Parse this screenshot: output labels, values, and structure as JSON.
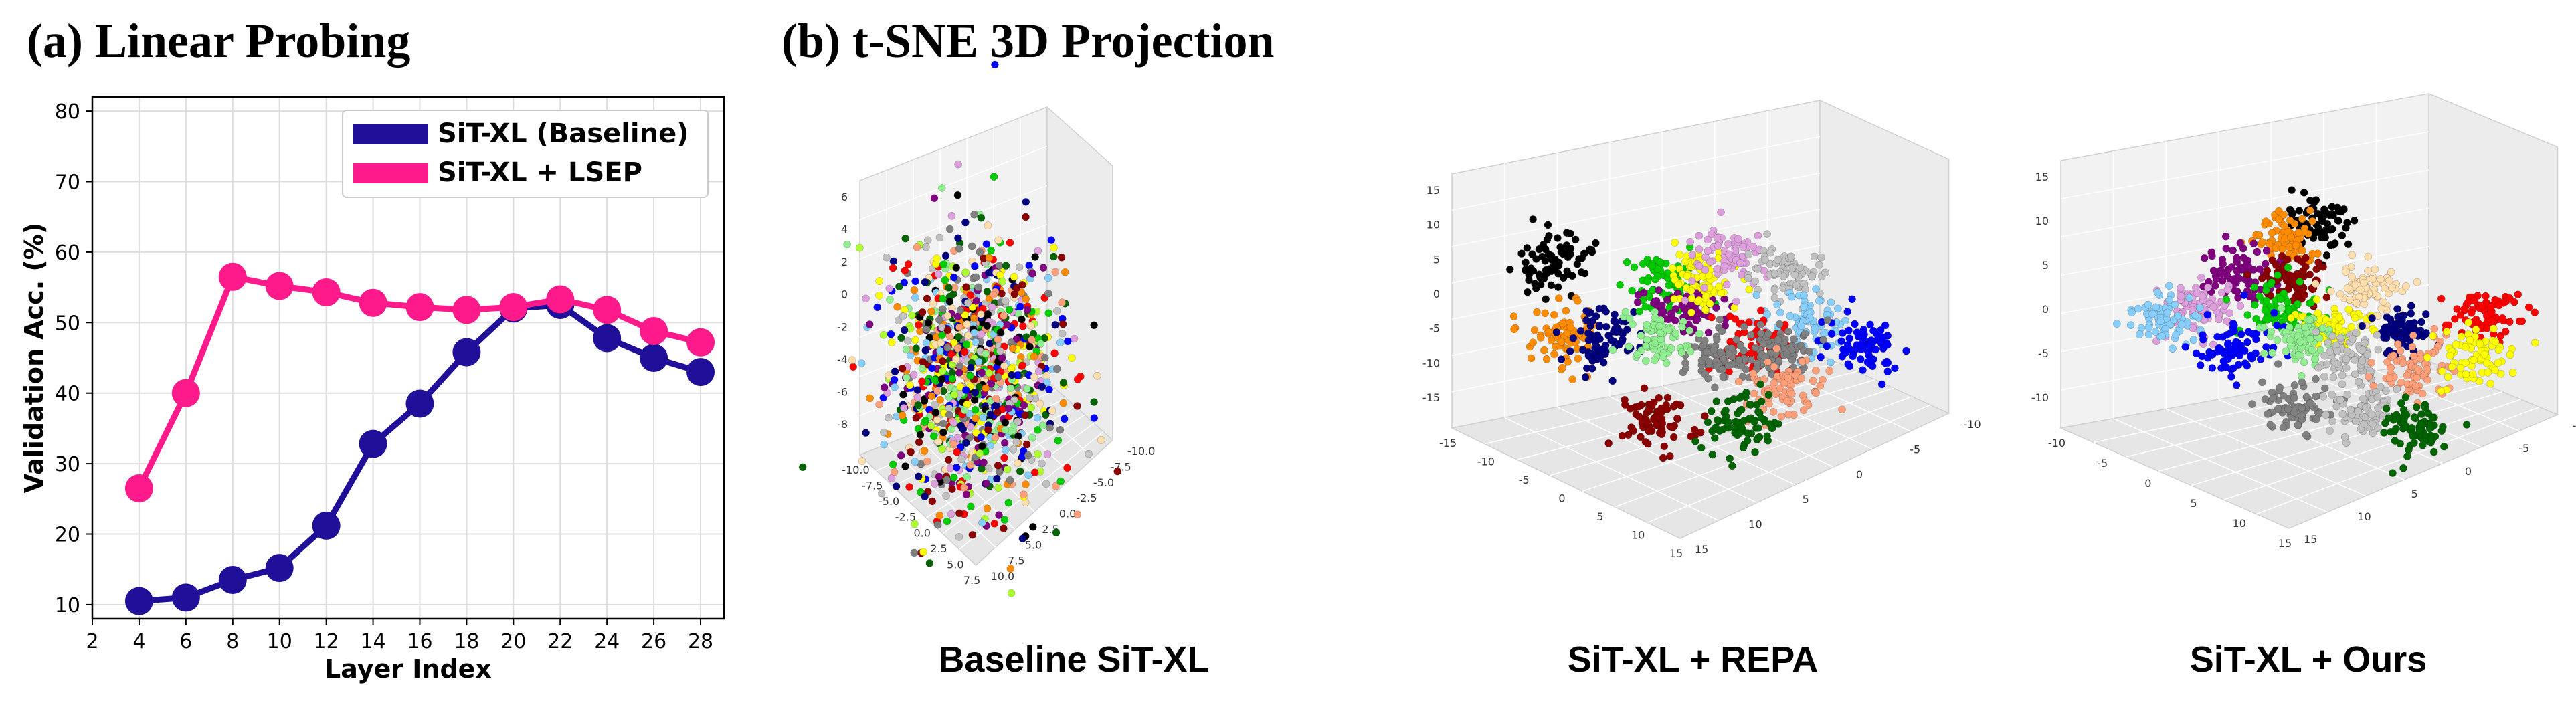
{
  "panel_a": {
    "title": "(a) Linear Probing"
  },
  "panel_b": {
    "title": "(b) t-SNE 3D Projection",
    "captions": [
      "Baseline SiT-XL",
      "SiT-XL + REPA",
      "SiT-XL + Ours"
    ]
  },
  "colors": {
    "baseline": "#1f0f99",
    "lsep": "#ff1a8c",
    "cluster_palette": [
      "#000000",
      "#ff0000",
      "#0000ff",
      "#00cc00",
      "#ff8c00",
      "#800080",
      "#ffff00",
      "#87cefa",
      "#8b0000",
      "#006400",
      "#808080",
      "#dda0dd",
      "#90ee90",
      "#ffa07a",
      "#000080",
      "#c0c0c0",
      "#ffdead",
      "#adff2f"
    ]
  },
  "chart_data": [
    {
      "type": "line",
      "xlabel": "Layer Index",
      "ylabel": "Validation Acc. (%)",
      "xlim": [
        2,
        29
      ],
      "ylim": [
        8,
        82
      ],
      "xticks": [
        2,
        4,
        6,
        8,
        10,
        12,
        14,
        16,
        18,
        20,
        22,
        24,
        26,
        28
      ],
      "yticks": [
        10,
        20,
        30,
        40,
        50,
        60,
        70,
        80
      ],
      "grid": true,
      "legend": "top-right",
      "series": [
        {
          "name": "SiT-XL (Baseline)",
          "x": [
            4,
            6,
            8,
            10,
            12,
            14,
            16,
            18,
            20,
            22,
            24,
            26,
            28
          ],
          "y": [
            10.5,
            11,
            13.5,
            15.2,
            21.2,
            32.8,
            38.5,
            45.8,
            52,
            52.5,
            47.8,
            45,
            43
          ]
        },
        {
          "name": "SiT-XL + LSEP",
          "x": [
            4,
            6,
            8,
            10,
            12,
            14,
            16,
            18,
            20,
            22,
            24,
            26,
            28
          ],
          "y": [
            26.5,
            40,
            56.5,
            55.2,
            54.3,
            52.8,
            52.2,
            51.8,
            52.2,
            53.3,
            51.8,
            48.8,
            47.2
          ]
        }
      ]
    },
    {
      "type": "scatter",
      "caption": "Baseline SiT-XL",
      "axes": {
        "x_ticks": [
          "-10.0",
          "-7.5",
          "-5.0",
          "-2.5",
          "0.0",
          "2.5",
          "5.0",
          "7.5"
        ],
        "y_ticks": [
          "-10.0",
          "-7.5",
          "-5.0",
          "-2.5",
          "0.0",
          "2.5",
          "5.0",
          "7.5",
          "10.0"
        ],
        "z_ticks": [
          "-8",
          "-6",
          "-4",
          "-2",
          "0",
          "2",
          "4",
          "6"
        ]
      },
      "clusters": [
        {
          "cx": -2,
          "cy": 0,
          "cz": 0,
          "spread": 7,
          "color_index": -1
        }
      ]
    },
    {
      "type": "scatter",
      "caption": "SiT-XL + REPA",
      "axes": {
        "x_ticks": [
          "-15",
          "-10",
          "-5",
          "0",
          "5",
          "10",
          "15"
        ],
        "y_ticks": [
          "-10",
          "-5",
          "0",
          "5",
          "10",
          "15"
        ],
        "z_ticks": [
          "-15",
          "-10",
          "-5",
          "0",
          "5",
          "10",
          "15"
        ]
      },
      "clusters": [
        {
          "cx": -11,
          "cy": 6,
          "cz": 11,
          "spread": 1.6,
          "color_index": 0
        },
        {
          "cx": -12,
          "cy": 0,
          "cz": 1,
          "spread": 1.8,
          "color_index": 4
        },
        {
          "cx": -8,
          "cy": 2,
          "cz": 2,
          "spread": 1.6,
          "color_index": 14
        },
        {
          "cx": -2,
          "cy": 4,
          "cz": 9,
          "spread": 1.6,
          "color_index": 3
        },
        {
          "cx": 0,
          "cy": 4,
          "cz": 6,
          "spread": 1.6,
          "color_index": 5
        },
        {
          "cx": 2,
          "cy": 6,
          "cz": 10,
          "spread": 1.6,
          "color_index": 6
        },
        {
          "cx": 5,
          "cy": 8,
          "cz": 13,
          "spread": 1.5,
          "color_index": 11
        },
        {
          "cx": 9,
          "cy": 4,
          "cz": 11,
          "spread": 1.5,
          "color_index": 15
        },
        {
          "cx": 10,
          "cy": 2,
          "cz": 5,
          "spread": 1.7,
          "color_index": 7
        },
        {
          "cx": 14,
          "cy": -2,
          "cz": 2,
          "spread": 1.6,
          "color_index": 2
        },
        {
          "cx": 4,
          "cy": -2,
          "cz": 1,
          "spread": 1.6,
          "color_index": 1
        },
        {
          "cx": 7,
          "cy": 0,
          "cz": 1,
          "spread": 1.3,
          "color_index": 10
        },
        {
          "cx": 0,
          "cy": -4,
          "cz": -1,
          "spread": 1.5,
          "color_index": 10
        },
        {
          "cx": 6,
          "cy": -4,
          "cz": -4,
          "spread": 1.5,
          "color_index": 13
        },
        {
          "cx": -6,
          "cy": -6,
          "cz": -9,
          "spread": 1.6,
          "color_index": 8
        },
        {
          "cx": 1,
          "cy": -8,
          "cz": -9,
          "spread": 1.5,
          "color_index": 9
        },
        {
          "cx": -4,
          "cy": 0,
          "cz": 2,
          "spread": 1.3,
          "color_index": 12
        }
      ]
    },
    {
      "type": "scatter",
      "caption": "SiT-XL + Ours",
      "axes": {
        "x_ticks": [
          "-10",
          "-5",
          "0",
          "5",
          "10",
          "15"
        ],
        "y_ticks": [
          "-10",
          "-5",
          "0",
          "5",
          "10",
          "15"
        ],
        "z_ticks": [
          "-10",
          "-5",
          "0",
          "5",
          "10",
          "15"
        ]
      },
      "clusters": [
        {
          "cx": 4,
          "cy": 8,
          "cz": 15,
          "spread": 1.5,
          "color_index": 0
        },
        {
          "cx": 0,
          "cy": 6,
          "cz": 13,
          "spread": 1.2,
          "color_index": 4
        },
        {
          "cx": -4,
          "cy": 6,
          "cz": 9,
          "spread": 1.5,
          "color_index": 5
        },
        {
          "cx": 0,
          "cy": 4,
          "cz": 8,
          "spread": 1.4,
          "color_index": 8
        },
        {
          "cx": -8,
          "cy": 4,
          "cz": 4,
          "spread": 1.5,
          "color_index": 11
        },
        {
          "cx": -12,
          "cy": 2,
          "cz": 2,
          "spread": 1.5,
          "color_index": 7
        },
        {
          "cx": -2,
          "cy": 2,
          "cz": 4,
          "spread": 1.5,
          "color_index": 3
        },
        {
          "cx": 6,
          "cy": 2,
          "cz": 7,
          "spread": 1.4,
          "color_index": 16
        },
        {
          "cx": 2,
          "cy": 0,
          "cz": 2,
          "spread": 1.3,
          "color_index": 6
        },
        {
          "cx": 8,
          "cy": 0,
          "cz": 2,
          "spread": 1.3,
          "color_index": 14
        },
        {
          "cx": 15,
          "cy": -2,
          "cz": 4,
          "spread": 1.5,
          "color_index": 1
        },
        {
          "cx": -8,
          "cy": -4,
          "cz": -2,
          "spread": 1.6,
          "color_index": 2
        },
        {
          "cx": -2,
          "cy": -4,
          "cz": -1,
          "spread": 1.4,
          "color_index": 12
        },
        {
          "cx": 2,
          "cy": -4,
          "cz": -2,
          "spread": 1.3,
          "color_index": 15
        },
        {
          "cx": 8,
          "cy": -4,
          "cz": -3,
          "spread": 1.5,
          "color_index": 13
        },
        {
          "cx": 13,
          "cy": -4,
          "cz": -1,
          "spread": 1.5,
          "color_index": 6
        },
        {
          "cx": -4,
          "cy": -8,
          "cz": -9,
          "spread": 1.5,
          "color_index": 10
        },
        {
          "cx": 2,
          "cy": -8,
          "cz": -9,
          "spread": 1.5,
          "color_index": 15
        },
        {
          "cx": 6,
          "cy": -8,
          "cz": -10,
          "spread": 1.5,
          "color_index": 9
        }
      ]
    }
  ]
}
